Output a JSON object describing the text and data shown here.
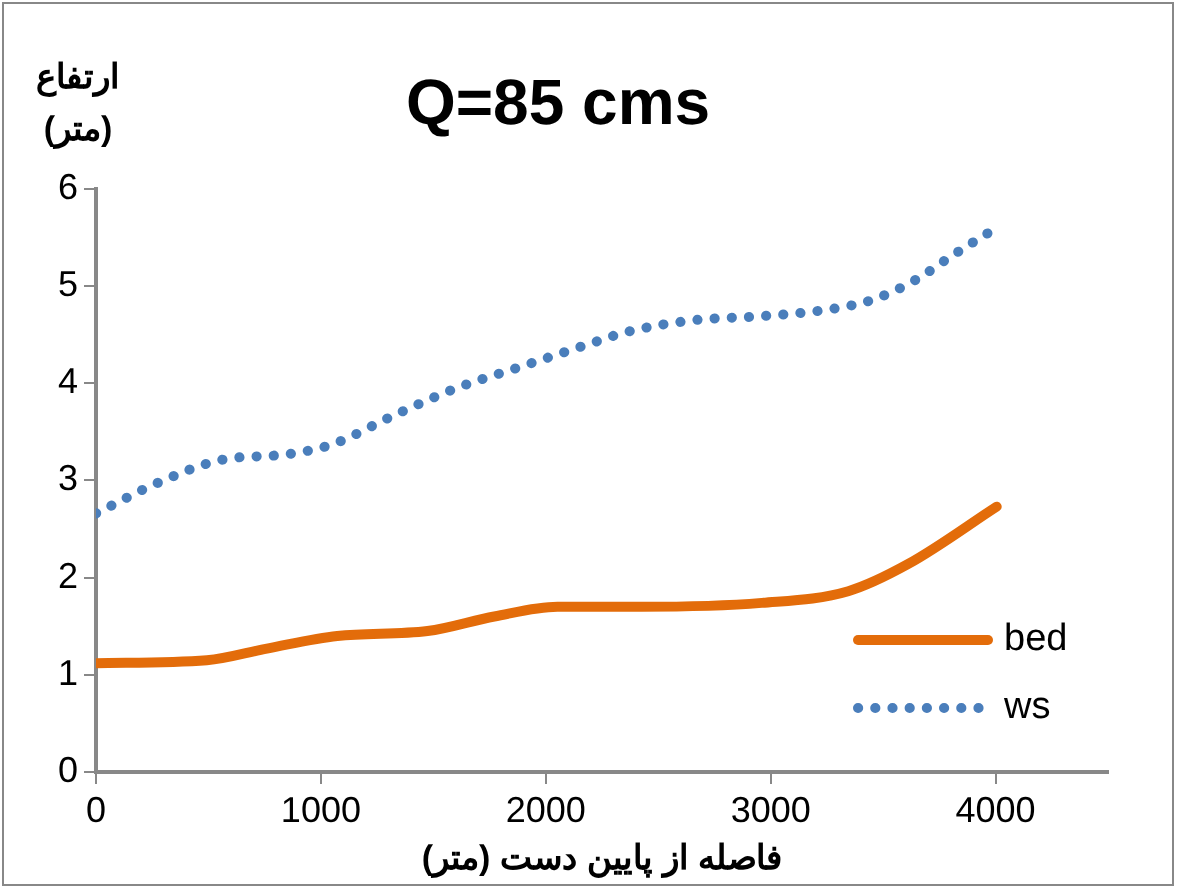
{
  "chart_data": {
    "type": "line",
    "title": "Q=85 cms",
    "xlabel": "فاصله از پایین دست (متر)",
    "ylabel": "ارتفاع (متر)",
    "xlim": [
      0,
      4500
    ],
    "xticks": [
      0,
      1000,
      2000,
      3000,
      4000
    ],
    "ylim": [
      0,
      6
    ],
    "yticks": [
      0,
      1,
      2,
      3,
      4,
      5,
      6
    ],
    "grid": false,
    "legend": "bottom right",
    "marker": "none",
    "series": [
      {
        "name": "bed",
        "color": "#e36c0a",
        "line_style": "solid",
        "x": [
          0,
          493,
          760,
          1073,
          1474,
          1771,
          2052,
          2424,
          2960,
          3345,
          3612,
          4005
        ],
        "values": [
          1.12,
          1.15,
          1.27,
          1.4,
          1.45,
          1.6,
          1.7,
          1.7,
          1.74,
          1.86,
          2.14,
          2.73
        ]
      },
      {
        "name": "ws",
        "color": "#4a7ebb",
        "line_style": "dotted",
        "x": [
          0,
          270,
          555,
          853,
          1049,
          1325,
          1604,
          1889,
          2175,
          2365,
          2665,
          2962,
          3262,
          3455,
          3642,
          3812,
          3984
        ],
        "values": [
          2.66,
          2.97,
          3.21,
          3.27,
          3.37,
          3.67,
          3.95,
          4.17,
          4.39,
          4.53,
          4.65,
          4.69,
          4.76,
          4.86,
          5.06,
          5.32,
          5.57
        ]
      }
    ]
  }
}
